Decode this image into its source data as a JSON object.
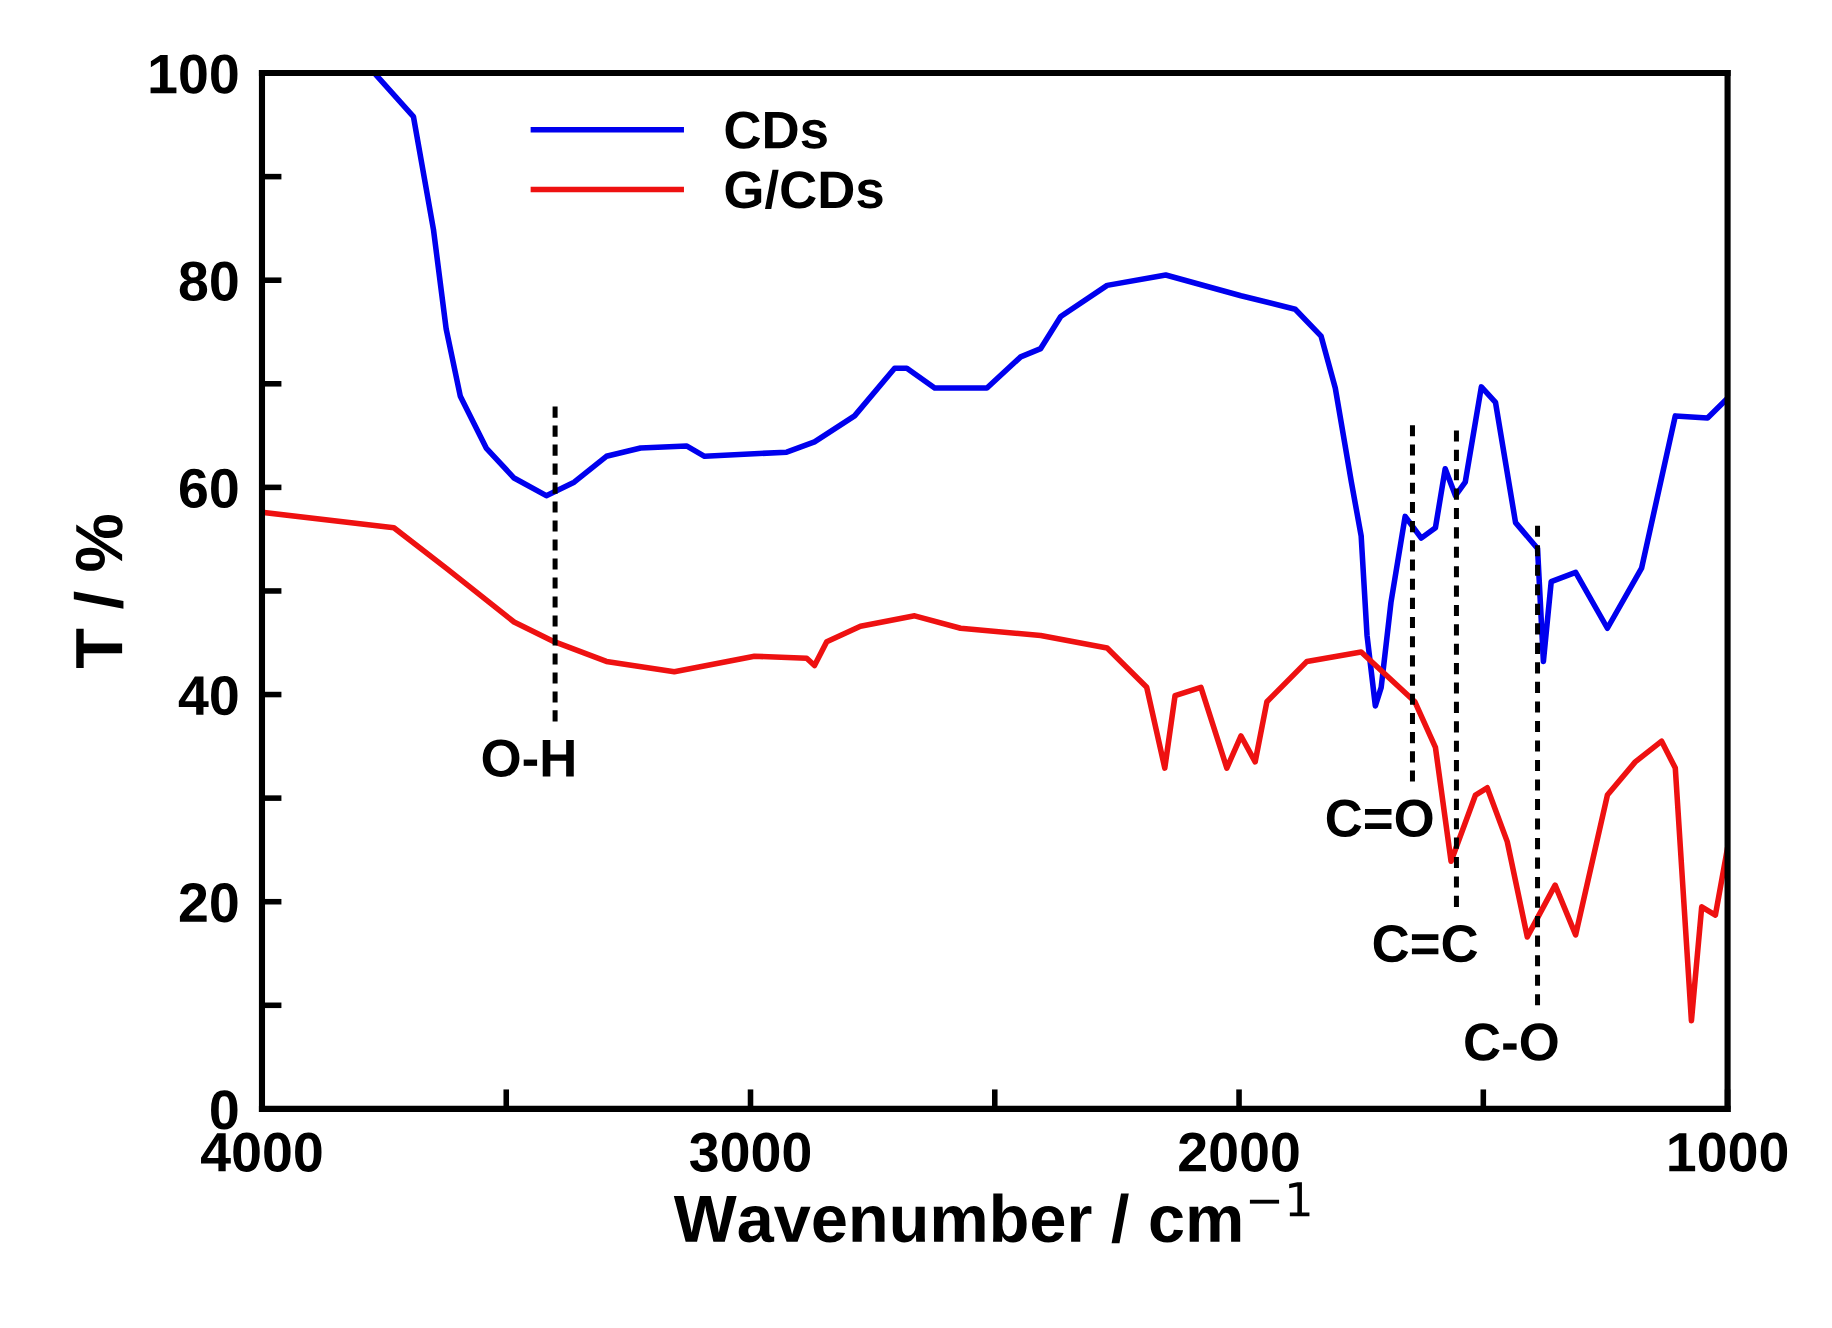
{
  "chart_data": {
    "type": "line",
    "xlabel": "Wavenumber / cm$^{−1}$",
    "ylabel": "T / %",
    "xlim": [
      4000,
      1000
    ],
    "ylim": [
      0,
      100
    ],
    "xticks": [
      4000,
      {
        "value": 3500,
        "label": null
      },
      3000,
      {
        "value": 2500,
        "label": null
      },
      2000,
      {
        "value": 1500,
        "label": null
      },
      1000
    ],
    "yticks": [
      0,
      {
        "value": 10,
        "label": null
      },
      20,
      {
        "value": 30,
        "label": null
      },
      40,
      {
        "value": 50,
        "label": null
      },
      60,
      {
        "value": 70,
        "label": null
      },
      80,
      {
        "value": 90,
        "label": null
      },
      100
    ],
    "grid": false,
    "legend": "top left",
    "marker": "none",
    "series": [
      {
        "name": "CDs",
        "color": "#0000ee",
        "line_style": "solid",
        "x": [
          3770,
          3690,
          3649,
          3623,
          3594,
          3541,
          3484,
          3418,
          3361,
          3295,
          3225,
          3131,
          3094,
          2926,
          2869,
          2787,
          2705,
          2680,
          2623,
          2516,
          2447,
          2406,
          2365,
          2270,
          2150,
          1996,
          1885,
          1832,
          1803,
          1770,
          1750,
          1738,
          1721,
          1709,
          1689,
          1660,
          1627,
          1598,
          1578,
          1557,
          1537,
          1504,
          1475,
          1434,
          1389,
          1377,
          1361,
          1311,
          1246,
          1176,
          1107,
          1041,
          1000
        ],
        "values": [
          100,
          95.8,
          84.9,
          75.3,
          68.8,
          63.8,
          60.9,
          59.2,
          60.5,
          63.0,
          63.8,
          64.0,
          63.0,
          63.4,
          64.4,
          66.9,
          71.5,
          71.5,
          69.6,
          69.6,
          72.6,
          73.4,
          76.5,
          79.5,
          80.5,
          78.5,
          77.2,
          74.6,
          69.6,
          60.5,
          55.3,
          45.7,
          38.9,
          40.7,
          48.9,
          57.2,
          55.1,
          56.1,
          61.8,
          59.2,
          60.5,
          69.7,
          68.2,
          56.6,
          54.1,
          43.2,
          50.9,
          51.8,
          46.4,
          52.2,
          66.9,
          66.7,
          68.6
        ]
      },
      {
        "name": "G/CDs",
        "color": "#ee1111",
        "line_style": "solid",
        "x": [
          4000,
          3730,
          3623,
          3484,
          3402,
          3295,
          3156,
          2992,
          2885,
          2869,
          2844,
          2775,
          2664,
          2570,
          2406,
          2270,
          2189,
          2152,
          2131,
          2078,
          2025,
          1996,
          1967,
          1943,
          1861,
          1750,
          1640,
          1598,
          1566,
          1516,
          1492,
          1451,
          1410,
          1353,
          1311,
          1246,
          1189,
          1135,
          1107,
          1074,
          1053,
          1025,
          1000
        ],
        "values": [
          57.6,
          56.1,
          52.2,
          47.0,
          45.1,
          43.2,
          42.2,
          43.7,
          43.5,
          42.8,
          45.1,
          46.6,
          47.6,
          46.4,
          45.7,
          44.5,
          40.7,
          32.9,
          39.9,
          40.7,
          32.9,
          36.0,
          33.5,
          39.3,
          43.2,
          44.1,
          39.3,
          34.9,
          23.9,
          30.3,
          31.0,
          25.8,
          16.6,
          21.6,
          16.8,
          30.3,
          33.5,
          35.5,
          32.9,
          8.5,
          19.5,
          18.7,
          25.2
        ]
      },
      {
        "color": "#000000",
        "line_style": "dashed",
        "x": [
          3400,
          3400
        ],
        "values": [
          67.8,
          37.4
        ]
      },
      {
        "color": "#000000",
        "line_style": "dashed",
        "x": [
          1645,
          1645
        ],
        "values": [
          66,
          31.6
        ]
      },
      {
        "color": "#000000",
        "line_style": "dashed",
        "x": [
          1555,
          1555
        ],
        "values": [
          65.5,
          19.5
        ]
      },
      {
        "color": "#000000",
        "line_style": "dashed",
        "x": [
          1389,
          1389
        ],
        "values": [
          56.3,
          10
        ]
      }
    ],
    "annotations": [
      {
        "text": "O-H",
        "x": 3400,
        "y": 37.4
      },
      {
        "text": "C=O",
        "x": 1645,
        "y": 31.6
      },
      {
        "text": "C=C",
        "x": 1555,
        "y": 19.5
      },
      {
        "text": "C-O",
        "x": 1389,
        "y": 10
      }
    ]
  }
}
